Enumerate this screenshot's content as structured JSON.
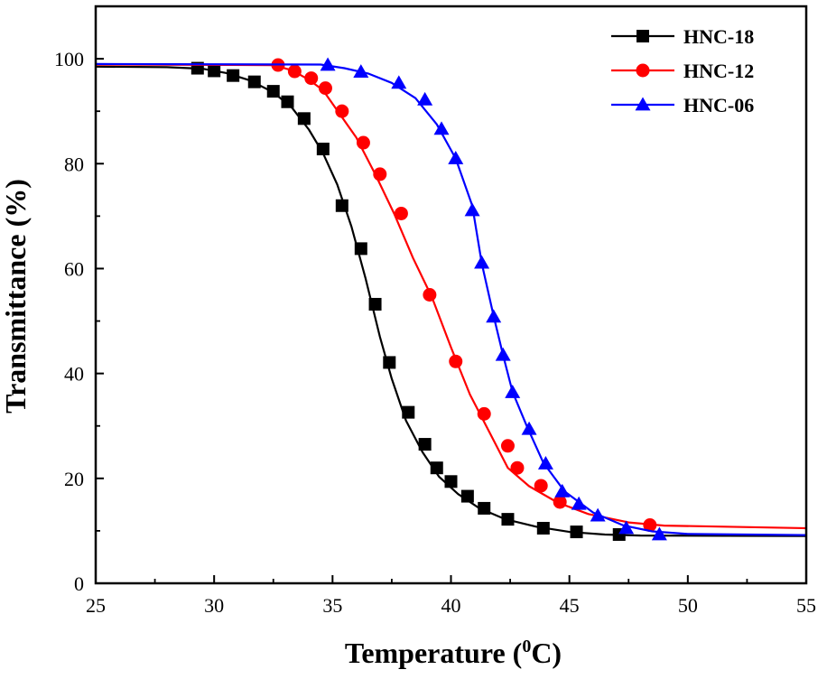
{
  "chart_data": {
    "type": "line",
    "xlabel_main": "Temperature (",
    "xlabel_sup": "0",
    "xlabel_end": "C)",
    "ylabel": "Transmittance (%)",
    "xlim": [
      25,
      55
    ],
    "ylim": [
      0,
      110
    ],
    "xticks": [
      25,
      30,
      35,
      40,
      45,
      50,
      55
    ],
    "yticks": [
      0,
      20,
      40,
      60,
      80,
      100
    ],
    "legend_position": "top-right",
    "series": [
      {
        "name": "HNC-18",
        "color": "#000000",
        "marker": "square",
        "line": [
          [
            25,
            98.5
          ],
          [
            28,
            98.4
          ],
          [
            29.5,
            98.1
          ],
          [
            30.5,
            97.3
          ],
          [
            31.5,
            95.9
          ],
          [
            32.5,
            93.6
          ],
          [
            33.3,
            90.6
          ],
          [
            34,
            86.5
          ],
          [
            34.6,
            82
          ],
          [
            35.2,
            76
          ],
          [
            35.8,
            68
          ],
          [
            36.4,
            58
          ],
          [
            37,
            47
          ],
          [
            37.5,
            39
          ],
          [
            38.1,
            31
          ],
          [
            38.8,
            25
          ],
          [
            39.5,
            20.3
          ],
          [
            40.3,
            17
          ],
          [
            41.2,
            14.3
          ],
          [
            42.3,
            12.2
          ],
          [
            43.6,
            10.8
          ],
          [
            45,
            9.8
          ],
          [
            46.5,
            9.3
          ],
          [
            48,
            9.1
          ],
          [
            55,
            9.0
          ]
        ],
        "markers": [
          [
            29.3,
            98.2
          ],
          [
            30,
            97.7
          ],
          [
            30.8,
            96.8
          ],
          [
            31.7,
            95.6
          ],
          [
            32.5,
            93.8
          ],
          [
            33.1,
            91.8
          ],
          [
            33.8,
            88.6
          ],
          [
            34.6,
            82.8
          ],
          [
            35.4,
            72
          ],
          [
            36.2,
            63.8
          ],
          [
            36.8,
            53.2
          ],
          [
            37.4,
            42.1
          ],
          [
            38.2,
            32.6
          ],
          [
            38.9,
            26.5
          ],
          [
            39.4,
            22
          ],
          [
            40,
            19.4
          ],
          [
            40.7,
            16.6
          ],
          [
            41.4,
            14.3
          ],
          [
            42.4,
            12.2
          ],
          [
            43.9,
            10.5
          ],
          [
            45.3,
            9.8
          ],
          [
            47.1,
            9.3
          ]
        ]
      },
      {
        "name": "HNC-12",
        "color": "#ff0000",
        "marker": "circle",
        "line": [
          [
            25,
            98.9
          ],
          [
            32.5,
            98.8
          ],
          [
            33.3,
            97.8
          ],
          [
            34,
            96
          ],
          [
            34.6,
            94
          ],
          [
            35.3,
            89.5
          ],
          [
            36,
            85
          ],
          [
            36.8,
            78
          ],
          [
            37.6,
            70.5
          ],
          [
            38.4,
            62
          ],
          [
            39.2,
            54.5
          ],
          [
            40,
            45
          ],
          [
            40.8,
            36
          ],
          [
            41.6,
            29
          ],
          [
            42.4,
            22
          ],
          [
            43.3,
            18.5
          ],
          [
            44.5,
            15.4
          ],
          [
            45.8,
            13.2
          ],
          [
            47.5,
            11.6
          ],
          [
            49,
            11
          ],
          [
            55,
            10.5
          ]
        ],
        "markers": [
          [
            32.7,
            98.8
          ],
          [
            33.4,
            97.6
          ],
          [
            34.1,
            96.3
          ],
          [
            34.7,
            94.4
          ],
          [
            35.4,
            90
          ],
          [
            36.3,
            84
          ],
          [
            37,
            78
          ],
          [
            37.9,
            70.5
          ],
          [
            39.1,
            55
          ],
          [
            40.2,
            42.3
          ],
          [
            41.4,
            32.3
          ],
          [
            42.4,
            26.2
          ],
          [
            42.8,
            22
          ],
          [
            43.8,
            18.6
          ],
          [
            44.6,
            15.5
          ],
          [
            48.4,
            11.1
          ]
        ]
      },
      {
        "name": "HNC-06",
        "color": "#0000ff",
        "marker": "triangle",
        "line": [
          [
            25,
            99
          ],
          [
            34.5,
            98.9
          ],
          [
            35.5,
            98.2
          ],
          [
            36.5,
            97.2
          ],
          [
            37.5,
            95.4
          ],
          [
            38.5,
            92.5
          ],
          [
            39.4,
            87.5
          ],
          [
            40.2,
            81
          ],
          [
            40.9,
            72
          ],
          [
            41.3,
            61
          ],
          [
            41.8,
            51
          ],
          [
            42.2,
            43.5
          ],
          [
            42.6,
            36.5
          ],
          [
            43.2,
            30
          ],
          [
            43.9,
            23
          ],
          [
            44.8,
            17.5
          ],
          [
            46,
            13.5
          ],
          [
            47.3,
            11
          ],
          [
            48.5,
            9.9
          ],
          [
            50,
            9.4
          ],
          [
            55,
            9.2
          ]
        ],
        "markers": [
          [
            34.8,
            98.8
          ],
          [
            36.2,
            97.5
          ],
          [
            37.8,
            95.4
          ],
          [
            38.9,
            92.2
          ],
          [
            39.6,
            86.6
          ],
          [
            40.2,
            81
          ],
          [
            40.9,
            71.1
          ],
          [
            41.3,
            61.1
          ],
          [
            41.8,
            50.8
          ],
          [
            42.2,
            43.5
          ],
          [
            42.6,
            36.4
          ],
          [
            43.3,
            29.4
          ],
          [
            44,
            22.8
          ],
          [
            44.7,
            17.5
          ],
          [
            45.4,
            15.1
          ],
          [
            46.2,
            12.9
          ],
          [
            47.4,
            10.5
          ],
          [
            48.8,
            9.3
          ]
        ]
      }
    ]
  }
}
